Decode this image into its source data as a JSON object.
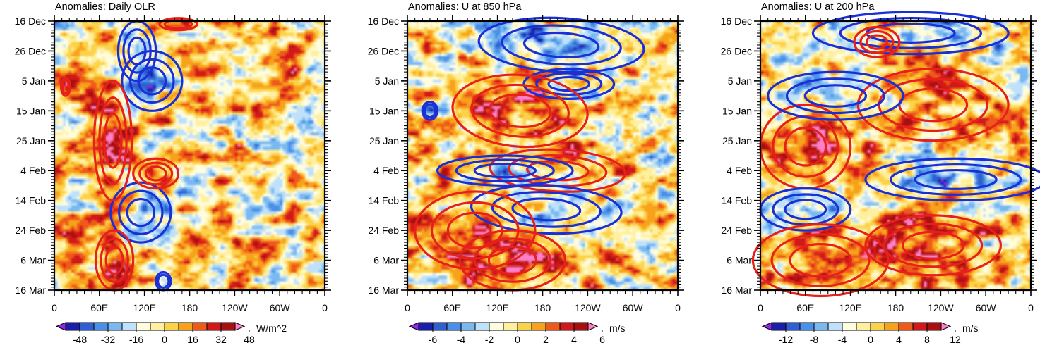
{
  "figure": {
    "description_units": "Hovmoller diagrams of anomalies, shading = filtered field, contours = positive (red) / negative (blue) anomalies",
    "contour_colors": {
      "positive": "#e8201a",
      "negative": "#1a2fd6"
    },
    "shade_palette": [
      "#8a2be2",
      "#1b1fa8",
      "#2f5fd0",
      "#4a8fe8",
      "#79b9f0",
      "#bfe1fb",
      "#fffde0",
      "#fff0a0",
      "#fcd24a",
      "#f7a21a",
      "#ef5a1a",
      "#d2191a",
      "#a80f10",
      "#ff7fc8"
    ]
  },
  "chart_data": [
    {
      "type": "heatmap",
      "title": "Anomalies: Daily OLR",
      "xlabel": "",
      "ylabel": "",
      "x_tick_labels": [
        "0",
        "60E",
        "120E",
        "180",
        "120W",
        "60W",
        "0"
      ],
      "x_ticks_deg": [
        0,
        60,
        120,
        180,
        240,
        300,
        360
      ],
      "xlim": [
        0,
        360
      ],
      "y_tick_labels": [
        "16 Dec",
        "26 Dec",
        "5 Jan",
        "15 Jan",
        "25 Jan",
        "4 Feb",
        "14 Feb",
        "24 Feb",
        "6 Mar",
        "16 Mar"
      ],
      "y_ticks_day": [
        0,
        10,
        20,
        30,
        40,
        50,
        60,
        70,
        80,
        90
      ],
      "ylim": [
        0,
        90
      ],
      "colorbar": {
        "labels": [
          "-48",
          "-32",
          "-16",
          "0",
          "16",
          "32",
          "48"
        ],
        "units": "W/m^2",
        "levels": [
          -56,
          -48,
          -40,
          -32,
          -24,
          -16,
          -8,
          0,
          8,
          16,
          24,
          32,
          40,
          48,
          56
        ],
        "range": [
          -64,
          64
        ]
      },
      "signal_scale": 1,
      "contours": [
        {
          "sign": -1,
          "lon": 130,
          "day": 20,
          "rlon": 40,
          "rday": 10,
          "tilt": 0
        },
        {
          "sign": -1,
          "lon": 110,
          "day": 10,
          "rlon": 25,
          "rday": 10,
          "tilt": 0
        },
        {
          "sign": -1,
          "lon": 115,
          "day": 64,
          "rlon": 40,
          "rday": 10,
          "tilt": 0
        },
        {
          "sign": -1,
          "lon": 145,
          "day": 87,
          "rlon": 10,
          "rday": 3,
          "tilt": 0
        },
        {
          "sign": 1,
          "lon": 78,
          "day": 40,
          "rlon": 25,
          "rday": 20,
          "tilt": 0
        },
        {
          "sign": 1,
          "lon": 135,
          "day": 51,
          "rlon": 30,
          "rday": 5,
          "tilt": 0
        },
        {
          "sign": 1,
          "lon": 80,
          "day": 80,
          "rlon": 25,
          "rday": 10,
          "tilt": 0
        },
        {
          "sign": 1,
          "lon": 15,
          "day": 22,
          "rlon": 6,
          "rday": 3,
          "tilt": 0
        },
        {
          "sign": 1,
          "lon": 165,
          "day": 1,
          "rlon": 25,
          "rday": 2,
          "tilt": 0
        }
      ]
    },
    {
      "type": "heatmap",
      "title": "Anomalies: U at 850 hPa",
      "xlabel": "",
      "ylabel": "",
      "x_tick_labels": [
        "0",
        "60E",
        "120E",
        "180",
        "120W",
        "60W",
        "0"
      ],
      "x_ticks_deg": [
        0,
        60,
        120,
        180,
        240,
        300,
        360
      ],
      "xlim": [
        0,
        360
      ],
      "y_tick_labels": [
        "16 Dec",
        "26 Dec",
        "5 Jan",
        "15 Jan",
        "25 Jan",
        "4 Feb",
        "14 Feb",
        "24 Feb",
        "6 Mar",
        "16 Mar"
      ],
      "y_ticks_day": [
        0,
        10,
        20,
        30,
        40,
        50,
        60,
        70,
        80,
        90
      ],
      "ylim": [
        0,
        90
      ],
      "colorbar": {
        "labels": [
          "-6",
          "-4",
          "-2",
          "0",
          "2",
          "4",
          "6"
        ],
        "units": "m/s",
        "levels": [
          -7,
          -6,
          -5,
          -4,
          -3,
          -2,
          -1,
          0,
          1,
          2,
          3,
          4,
          5,
          6,
          7
        ],
        "range": [
          -8,
          8
        ]
      },
      "signal_scale": 0.14,
      "contours": [
        {
          "sign": -1,
          "lon": 205,
          "day": 8,
          "rlon": 110,
          "rday": 9,
          "tilt": -0.06
        },
        {
          "sign": -1,
          "lon": 215,
          "day": 21,
          "rlon": 60,
          "rday": 5,
          "tilt": 0
        },
        {
          "sign": 1,
          "lon": 150,
          "day": 30,
          "rlon": 90,
          "rday": 12,
          "tilt": -0.08
        },
        {
          "sign": 1,
          "lon": 200,
          "day": 50,
          "rlon": 90,
          "rday": 7,
          "tilt": -0.05
        },
        {
          "sign": -1,
          "lon": 130,
          "day": 50,
          "rlon": 90,
          "rday": 5,
          "tilt": 0
        },
        {
          "sign": -1,
          "lon": 185,
          "day": 63,
          "rlon": 100,
          "rday": 8,
          "tilt": -0.05
        },
        {
          "sign": 1,
          "lon": 90,
          "day": 70,
          "rlon": 80,
          "rday": 13,
          "tilt": 0
        },
        {
          "sign": 1,
          "lon": 140,
          "day": 80,
          "rlon": 70,
          "rday": 10,
          "tilt": 0
        },
        {
          "sign": -1,
          "lon": 30,
          "day": 30,
          "rlon": 10,
          "rday": 3,
          "tilt": 0
        }
      ]
    },
    {
      "type": "heatmap",
      "title": "Anomalies: U at 200 hPa",
      "xlabel": "",
      "ylabel": "",
      "x_tick_labels": [
        "0",
        "60E",
        "120E",
        "180",
        "120W",
        "60W",
        "0"
      ],
      "x_ticks_deg": [
        0,
        60,
        120,
        180,
        240,
        300,
        360
      ],
      "xlim": [
        0,
        360
      ],
      "y_tick_labels": [
        "16 Dec",
        "26 Dec",
        "5 Jan",
        "15 Jan",
        "25 Jan",
        "4 Feb",
        "14 Feb",
        "24 Feb",
        "6 Mar",
        "16 Mar"
      ],
      "y_ticks_day": [
        0,
        10,
        20,
        30,
        40,
        50,
        60,
        70,
        80,
        90
      ],
      "ylim": [
        0,
        90
      ],
      "colorbar": {
        "labels": [
          "-12",
          "-8",
          "-4",
          "0",
          "4",
          "8",
          "12"
        ],
        "units": "m/s",
        "levels": [
          -14,
          -12,
          -10,
          -8,
          -6,
          -4,
          -2,
          0,
          2,
          4,
          6,
          8,
          10,
          12,
          14
        ],
        "range": [
          -16,
          16
        ]
      },
      "signal_scale": 0.28,
      "contours": [
        {
          "sign": -1,
          "lon": 200,
          "day": 4,
          "rlon": 130,
          "rday": 7,
          "tilt": 0
        },
        {
          "sign": 1,
          "lon": 230,
          "day": 28,
          "rlon": 100,
          "rday": 12,
          "tilt": 0
        },
        {
          "sign": 1,
          "lon": 60,
          "day": 42,
          "rlon": 60,
          "rday": 14,
          "tilt": -0.05
        },
        {
          "sign": -1,
          "lon": 100,
          "day": 25,
          "rlon": 90,
          "rday": 8,
          "tilt": 0
        },
        {
          "sign": -1,
          "lon": 260,
          "day": 53,
          "rlon": 120,
          "rday": 7,
          "tilt": 0
        },
        {
          "sign": -1,
          "lon": 60,
          "day": 63,
          "rlon": 60,
          "rday": 7,
          "tilt": 0
        },
        {
          "sign": 1,
          "lon": 80,
          "day": 80,
          "rlon": 90,
          "rday": 12,
          "tilt": 0
        },
        {
          "sign": 1,
          "lon": 230,
          "day": 75,
          "rlon": 90,
          "rday": 10,
          "tilt": 0
        },
        {
          "sign": 1,
          "lon": 155,
          "day": 7,
          "rlon": 30,
          "rday": 5,
          "tilt": 0
        }
      ]
    }
  ]
}
